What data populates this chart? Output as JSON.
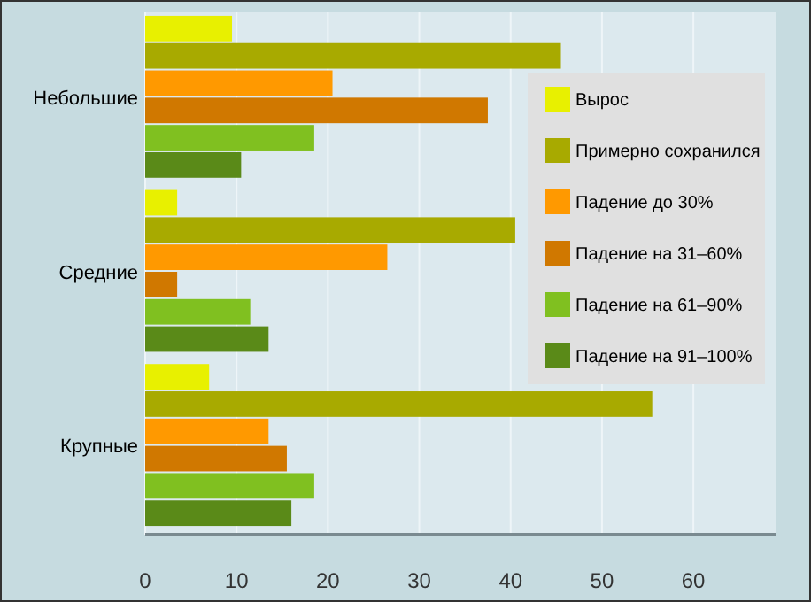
{
  "chart_data": {
    "type": "bar",
    "orientation": "horizontal",
    "categories": [
      "Небольшие",
      "Средние",
      "Крупные"
    ],
    "series": [
      {
        "name": "Вырос",
        "color": "#e8f000",
        "values": [
          9.5,
          3.5,
          7
        ]
      },
      {
        "name": "Примерно сохранился",
        "color": "#a8aa00",
        "values": [
          45.5,
          40.5,
          55.5
        ]
      },
      {
        "name": "Падение до 30%",
        "color": "#ff9900",
        "values": [
          20.5,
          26.5,
          13.5
        ]
      },
      {
        "name": "Падение на 31–60%",
        "color": "#d07800",
        "values": [
          37.5,
          3.5,
          15.5
        ]
      },
      {
        "name": "Падение на 61–90%",
        "color": "#80c020",
        "values": [
          18.5,
          11.5,
          18.5
        ]
      },
      {
        "name": "Падение на 91–100%",
        "color": "#5a8a18",
        "values": [
          10.5,
          13.5,
          16
        ]
      }
    ],
    "xlim": [
      0,
      69
    ],
    "xticks": [
      0,
      10,
      20,
      30,
      40,
      50,
      60
    ],
    "grid": "x",
    "legend": "right"
  }
}
